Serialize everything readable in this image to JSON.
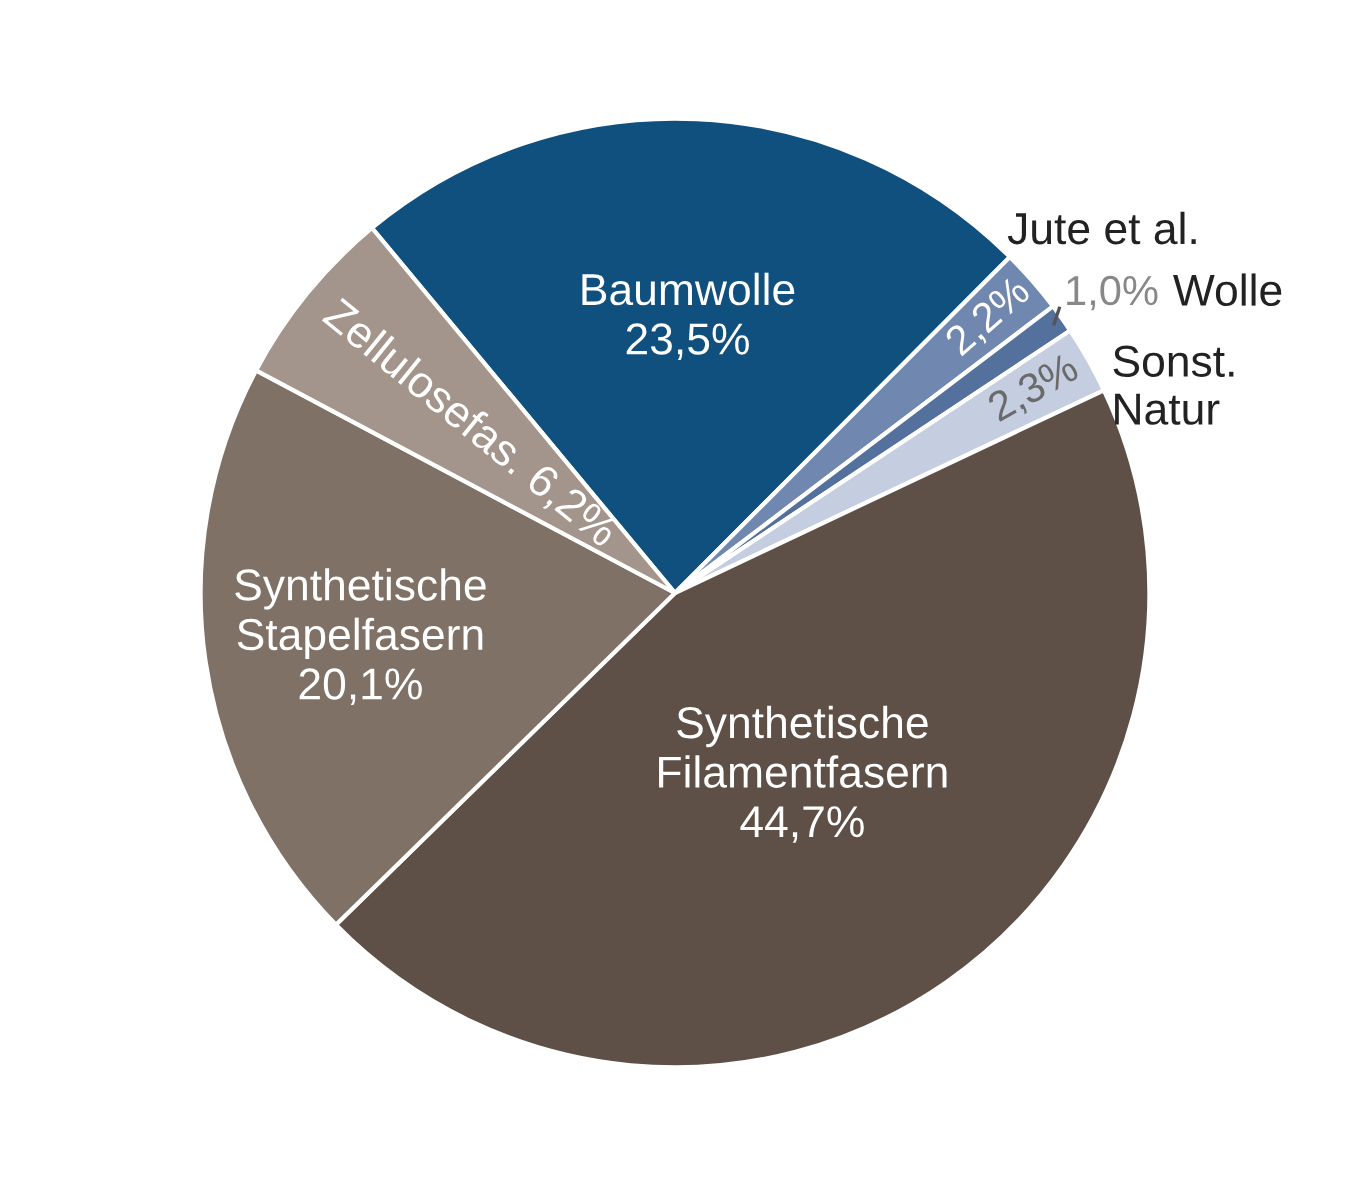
{
  "chart_data": {
    "type": "pie",
    "categories": [
      "Baumwolle",
      "Jute et al.",
      "Wolle",
      "Sonst. Natur",
      "Synthetische Filamentfasern",
      "Synthetische Stapelfasern",
      "Zellulosefas."
    ],
    "values": [
      23.5,
      2.2,
      1.0,
      2.3,
      44.7,
      20.1,
      6.2
    ],
    "colors": [
      "#10507f",
      "#7088b0",
      "#54709c",
      "#c5cde0",
      "#5f5047",
      "#807166",
      "#a3958b"
    ],
    "value_labels": [
      "23,5%",
      "2,2%",
      "1,0%",
      "2,3%",
      "44,7%",
      "20,1%",
      "6,2%"
    ]
  }
}
